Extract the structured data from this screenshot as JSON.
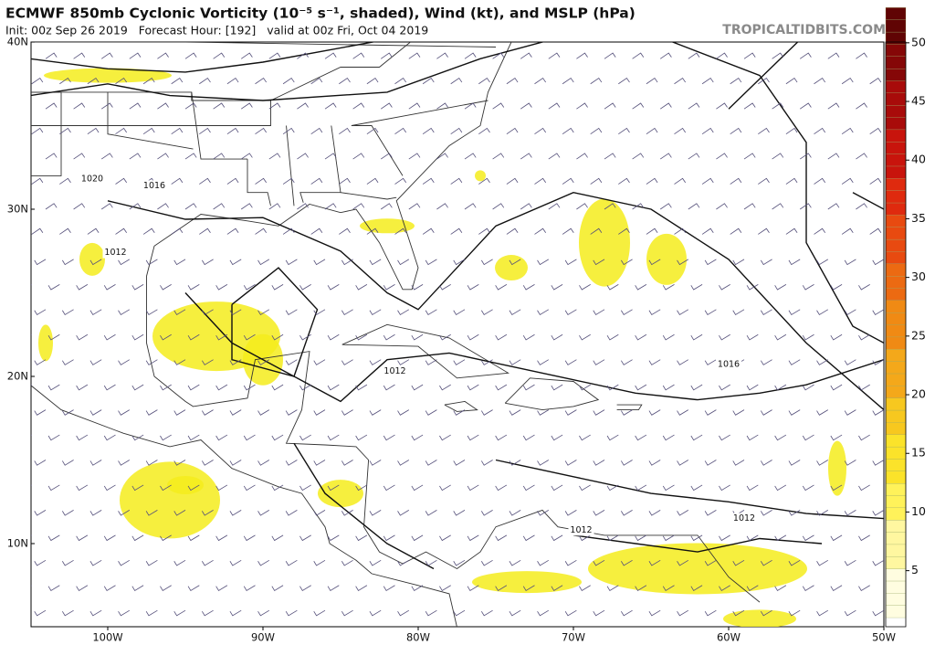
{
  "header": {
    "title": "ECMWF 850mb Cyclonic Vorticity (10⁻⁵ s⁻¹, shaded), Wind (kt), and MSLP (hPa)",
    "subtitle": "Init: 00z Sep 26 2019   Forecast Hour: [192]   valid at 00z Fri, Oct 04 2019",
    "brand": "TROPICALTIDBITS.COM"
  },
  "map": {
    "lat_labels": [
      "40N",
      "30N",
      "20N",
      "10N"
    ],
    "lon_labels": [
      "100W",
      "90W",
      "80W",
      "70W",
      "60W",
      "50W"
    ],
    "isobar_labels": [
      "1020",
      "1016",
      "1012",
      "1012",
      "1016",
      "1012",
      "1012"
    ]
  },
  "colorbar": {
    "ticks": [
      5,
      10,
      15,
      20,
      25,
      30,
      35,
      40,
      45,
      50
    ]
  }
}
